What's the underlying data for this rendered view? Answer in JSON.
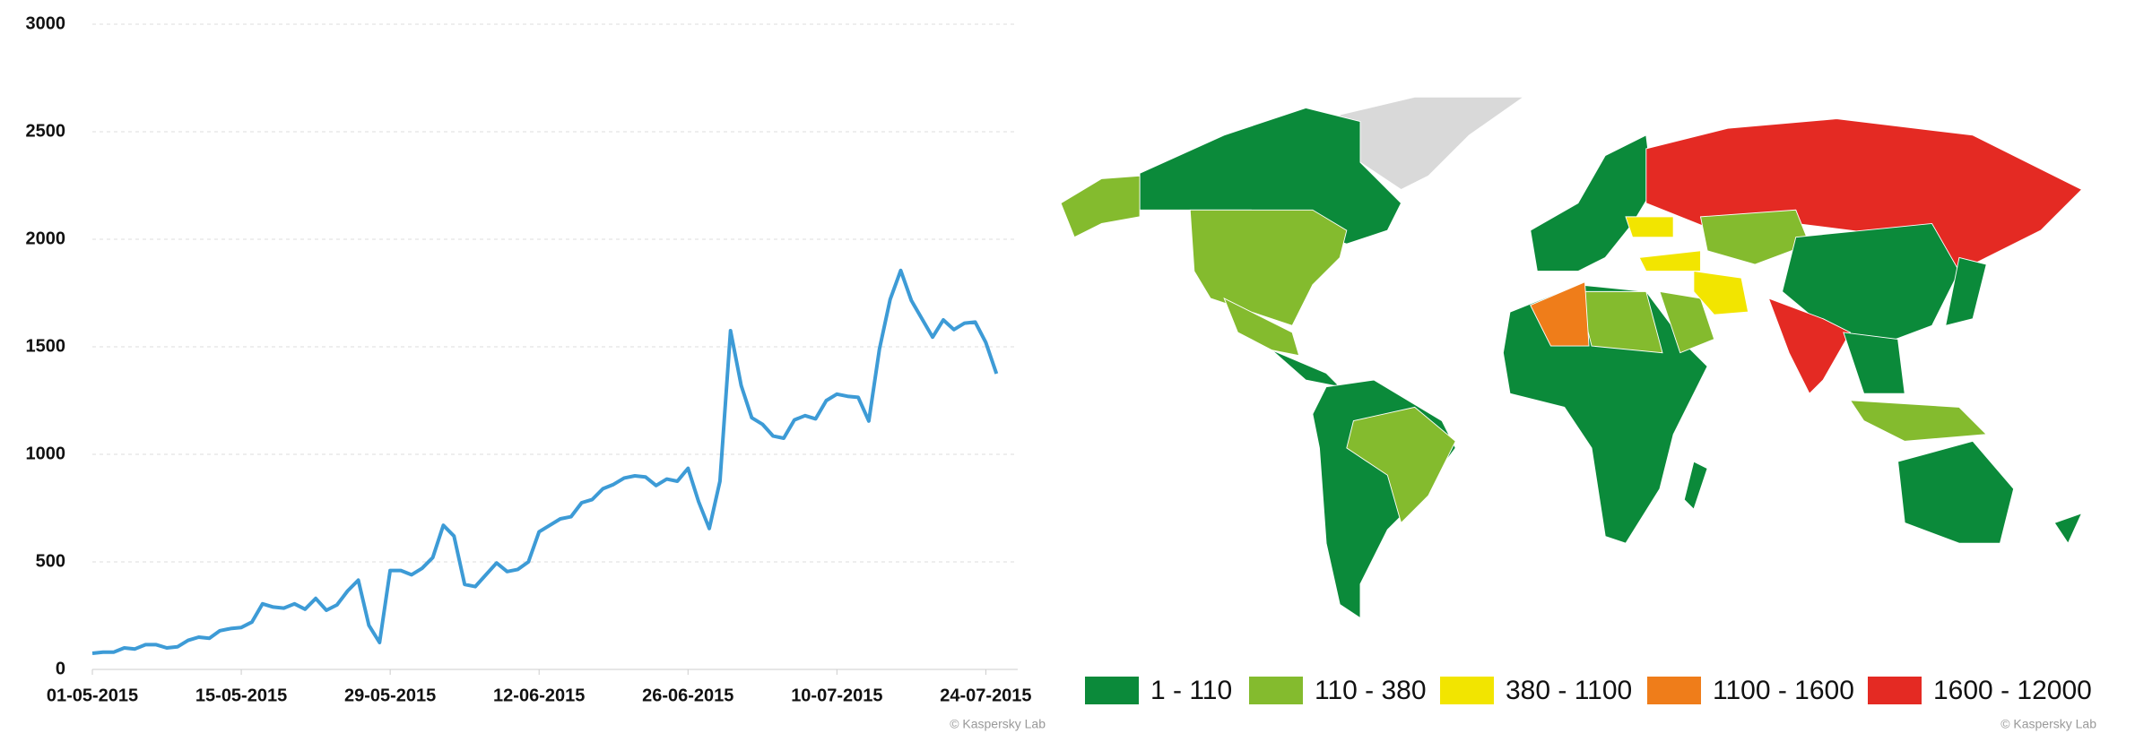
{
  "chart_data": [
    {
      "type": "line",
      "x": [
        "01-05-2015",
        "02-05-2015",
        "03-05-2015",
        "04-05-2015",
        "05-05-2015",
        "06-05-2015",
        "07-05-2015",
        "08-05-2015",
        "09-05-2015",
        "10-05-2015",
        "11-05-2015",
        "12-05-2015",
        "13-05-2015",
        "14-05-2015",
        "15-05-2015",
        "16-05-2015",
        "17-05-2015",
        "18-05-2015",
        "19-05-2015",
        "20-05-2015",
        "21-05-2015",
        "22-05-2015",
        "23-05-2015",
        "24-05-2015",
        "25-05-2015",
        "26-05-2015",
        "27-05-2015",
        "28-05-2015",
        "29-05-2015",
        "30-05-2015",
        "31-05-2015",
        "01-06-2015",
        "02-06-2015",
        "03-06-2015",
        "04-06-2015",
        "05-06-2015",
        "06-06-2015",
        "07-06-2015",
        "08-06-2015",
        "09-06-2015",
        "10-06-2015",
        "11-06-2015",
        "12-06-2015",
        "13-06-2015",
        "14-06-2015",
        "15-06-2015",
        "16-06-2015",
        "17-06-2015",
        "18-06-2015",
        "19-06-2015",
        "20-06-2015",
        "21-06-2015",
        "22-06-2015",
        "23-06-2015",
        "24-06-2015",
        "25-06-2015",
        "26-06-2015",
        "27-06-2015",
        "28-06-2015",
        "29-06-2015",
        "30-06-2015",
        "01-07-2015",
        "02-07-2015",
        "03-07-2015",
        "04-07-2015",
        "05-07-2015",
        "06-07-2015",
        "07-07-2015",
        "08-07-2015",
        "09-07-2015",
        "10-07-2015",
        "11-07-2015",
        "12-07-2015",
        "13-07-2015",
        "14-07-2015",
        "15-07-2015",
        "16-07-2015",
        "17-07-2015",
        "18-07-2015",
        "19-07-2015",
        "20-07-2015",
        "21-07-2015",
        "22-07-2015",
        "23-07-2015",
        "24-07-2015",
        "25-07-2015"
      ],
      "series": [
        {
          "color": "#3d9bd6",
          "values": [
            75,
            80,
            80,
            100,
            95,
            115,
            115,
            100,
            105,
            135,
            150,
            145,
            180,
            190,
            195,
            220,
            305,
            290,
            285,
            305,
            280,
            330,
            275,
            300,
            365,
            415,
            205,
            125,
            460,
            460,
            440,
            470,
            520,
            670,
            620,
            395,
            385,
            440,
            495,
            455,
            465,
            500,
            640,
            670,
            700,
            710,
            775,
            790,
            840,
            860,
            890,
            900,
            895,
            855,
            885,
            875,
            935,
            780,
            655,
            875,
            1575,
            1320,
            1170,
            1140,
            1085,
            1075,
            1160,
            1180,
            1165,
            1250,
            1280,
            1270,
            1265,
            1155,
            1490,
            1720,
            1855,
            1715,
            1630,
            1545,
            1625,
            1580,
            1610,
            1615,
            1520,
            1375
          ]
        }
      ],
      "xlim": [
        "01-05-2015",
        "27-07-2015"
      ],
      "xticks": [
        "01-05-2015",
        "15-05-2015",
        "29-05-2015",
        "12-06-2015",
        "26-06-2015",
        "10-07-2015",
        "24-07-2015"
      ],
      "ylim": [
        0,
        3000
      ],
      "yticks": [
        0,
        500,
        1000,
        1500,
        2000,
        2500,
        3000
      ],
      "grid": true,
      "credit": "© Kaspersky Lab"
    },
    {
      "type": "map",
      "legend": [
        {
          "label": "1 - 110",
          "color": "#0b8a3a"
        },
        {
          "label": "110 - 380",
          "color": "#84bb2e"
        },
        {
          "label": "380 - 1100",
          "color": "#f2e500"
        },
        {
          "label": "1100 - 1600",
          "color": "#ef7d1a"
        },
        {
          "label": "1600 - 12000",
          "color": "#e42a23"
        }
      ],
      "no_data_color": "#d9d9d9",
      "credit": "© Kaspersky Lab"
    }
  ]
}
